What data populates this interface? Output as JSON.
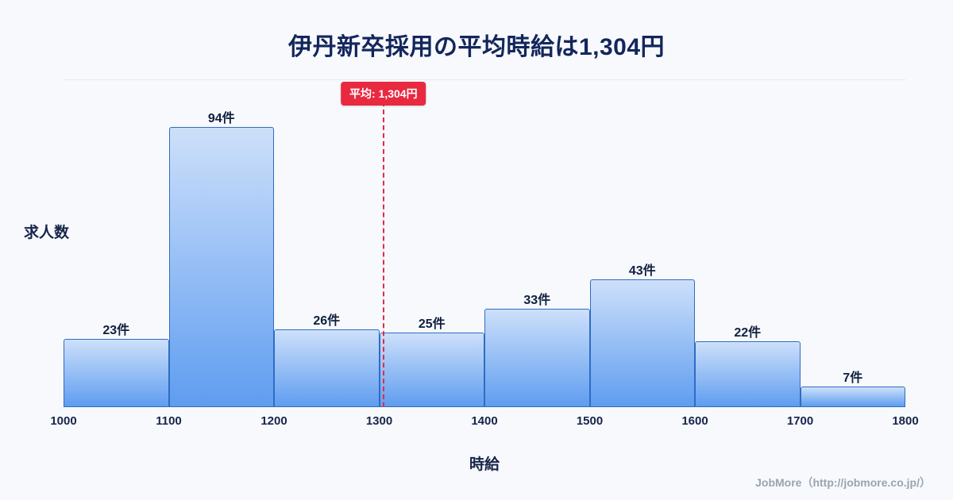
{
  "page": {
    "background": "#f7f9fc",
    "footer": "JobMore（http://jobmore.co.jp/）"
  },
  "chart_data": {
    "type": "bar",
    "title": "伊丹新卒採用の平均時給は1,304円",
    "xlabel": "時給",
    "ylabel": "求人数",
    "bin_edges": [
      1000,
      1100,
      1200,
      1300,
      1400,
      1500,
      1600,
      1700,
      1800
    ],
    "values": [
      23,
      94,
      26,
      25,
      33,
      43,
      22,
      7
    ],
    "value_labels": [
      "23件",
      "94件",
      "26件",
      "25件",
      "33件",
      "43件",
      "22件",
      "7件"
    ],
    "mean": {
      "value": 1304,
      "label": "平均: 1,304円"
    },
    "xlim": [
      1000,
      1800
    ],
    "ylim": [
      0,
      110
    ],
    "grid": false,
    "legend": false,
    "colors": {
      "bar_fill_top": "#cde0fa",
      "bar_fill_bottom": "#5f9df0",
      "bar_border": "#2f6cc4",
      "mean_line": "#e8293f",
      "title_text": "#13265c",
      "axis_text": "#17254a",
      "footer_text": "#9aa3b2",
      "page_background": "#f7f9fc"
    }
  }
}
